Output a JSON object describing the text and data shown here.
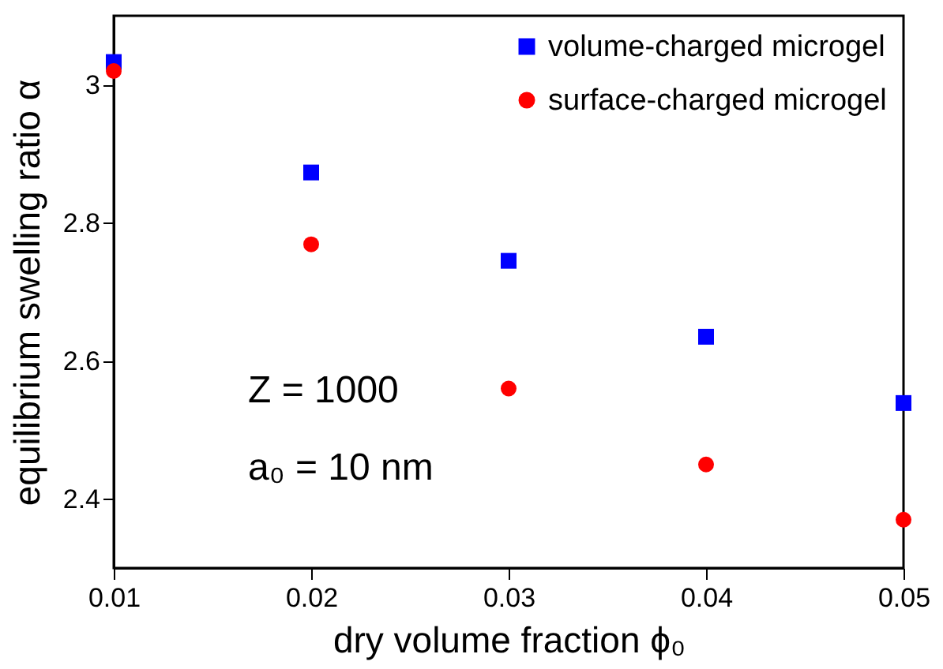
{
  "chart_data": {
    "type": "scatter",
    "xlabel": "dry volume fraction  ϕ₀",
    "ylabel": "equilibrium swelling ratio   α",
    "x": [
      0.01,
      0.02,
      0.03,
      0.04,
      0.05
    ],
    "series": [
      {
        "name": "volume-charged microgel",
        "color": "#0000ff",
        "marker": "square",
        "values": [
          3.033,
          2.873,
          2.745,
          2.635,
          2.539
        ]
      },
      {
        "name": "surface-charged microgel",
        "color": "#ff0000",
        "marker": "circle",
        "values": [
          3.02,
          2.769,
          2.56,
          2.45,
          2.37
        ]
      }
    ],
    "xlim": [
      0.01,
      0.05
    ],
    "xticks": [
      0.01,
      0.02,
      0.03,
      0.04,
      0.05
    ],
    "ylim": [
      2.3,
      3.1
    ],
    "yticks": [
      2.4,
      2.6,
      2.8,
      3
    ],
    "annotations": [
      "Z = 1000",
      "a₀ = 10 nm"
    ],
    "legend": "top right",
    "grid": false
  }
}
